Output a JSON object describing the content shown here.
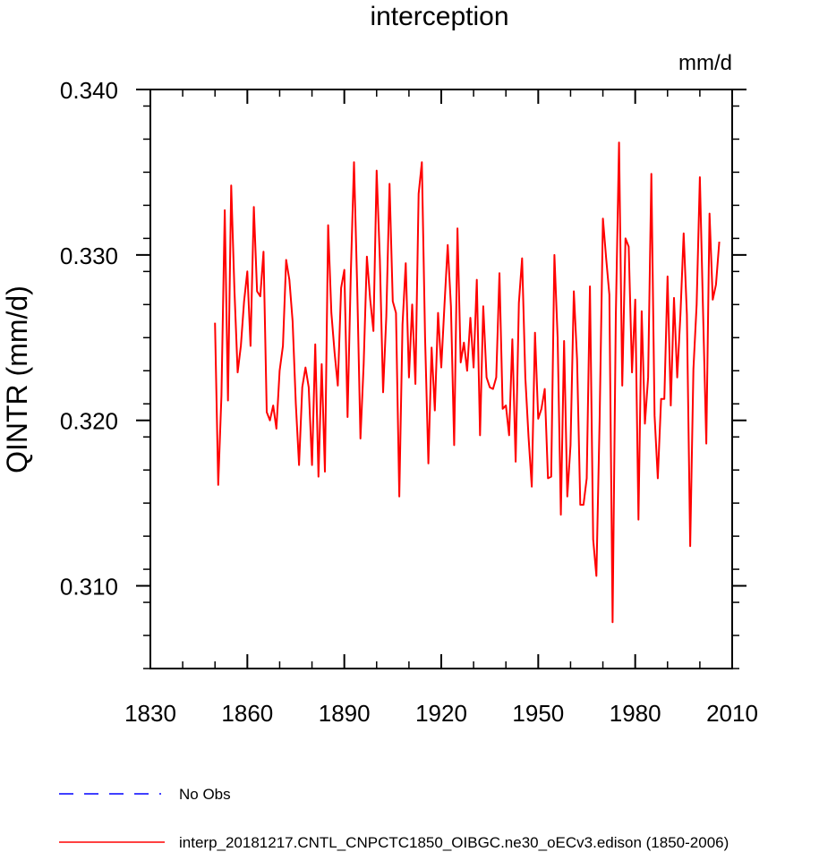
{
  "chart_data": {
    "type": "line",
    "title": "interception",
    "units_label": "mm/d",
    "ylabel": "QINTR  (mm/d)",
    "xlabel": "",
    "xlim": [
      1830,
      2010
    ],
    "ylim": [
      0.305,
      0.34
    ],
    "xticks": [
      "1830",
      "1860",
      "1890",
      "1920",
      "1950",
      "1980",
      "2010"
    ],
    "yticks": [
      "0.310",
      "0.320",
      "0.330",
      "0.340"
    ],
    "grid": false,
    "legend_position": "bottom-left",
    "series": [
      {
        "name": "No Obs",
        "color": "#0000ff",
        "style": "dashed",
        "x": [],
        "values": []
      },
      {
        "name": "interp_20181217.CNTL_CNPCTC1850_OIBGC.ne30_oECv3.edison (1850-2006)",
        "color": "#ff0000",
        "style": "solid",
        "x_start": 1850,
        "values": [
          0.3259,
          0.3161,
          0.3215,
          0.3327,
          0.3212,
          0.3342,
          0.3279,
          0.3229,
          0.3245,
          0.3272,
          0.329,
          0.3245,
          0.3329,
          0.3278,
          0.3275,
          0.3302,
          0.3205,
          0.32,
          0.3209,
          0.3195,
          0.323,
          0.3245,
          0.3297,
          0.3285,
          0.326,
          0.321,
          0.3173,
          0.322,
          0.3232,
          0.322,
          0.3173,
          0.3246,
          0.3166,
          0.3234,
          0.3169,
          0.3318,
          0.3265,
          0.3241,
          0.3221,
          0.328,
          0.3291,
          0.3202,
          0.3288,
          0.3356,
          0.328,
          0.3189,
          0.3234,
          0.3299,
          0.3273,
          0.3254,
          0.3351,
          0.3297,
          0.3217,
          0.3263,
          0.3343,
          0.3272,
          0.3265,
          0.3154,
          0.3258,
          0.3295,
          0.3226,
          0.327,
          0.3222,
          0.3337,
          0.3356,
          0.325,
          0.3174,
          0.3244,
          0.3206,
          0.3265,
          0.3232,
          0.327,
          0.3306,
          0.3269,
          0.3185,
          0.3316,
          0.3235,
          0.3247,
          0.323,
          0.3262,
          0.3232,
          0.3285,
          0.3191,
          0.3269,
          0.3226,
          0.322,
          0.3219,
          0.3226,
          0.3289,
          0.3207,
          0.3209,
          0.3191,
          0.3249,
          0.3175,
          0.3271,
          0.3298,
          0.3226,
          0.319,
          0.316,
          0.3253,
          0.3201,
          0.3207,
          0.3219,
          0.3165,
          0.3166,
          0.33,
          0.325,
          0.3143,
          0.3248,
          0.3154,
          0.3185,
          0.3278,
          0.3237,
          0.3149,
          0.3149,
          0.3165,
          0.3281,
          0.3128,
          0.3106,
          0.32,
          0.3322,
          0.3298,
          0.3276,
          0.3078,
          0.3263,
          0.3368,
          0.3221,
          0.331,
          0.3305,
          0.3229,
          0.3273,
          0.314,
          0.3266,
          0.3198,
          0.3226,
          0.3349,
          0.3203,
          0.3165,
          0.3213,
          0.3213,
          0.3287,
          0.3209,
          0.3274,
          0.3226,
          0.3264,
          0.3313,
          0.3264,
          0.3124,
          0.3231,
          0.327,
          0.3347,
          0.3265,
          0.3186,
          0.3325,
          0.3273,
          0.3282,
          0.3308
        ]
      }
    ]
  }
}
